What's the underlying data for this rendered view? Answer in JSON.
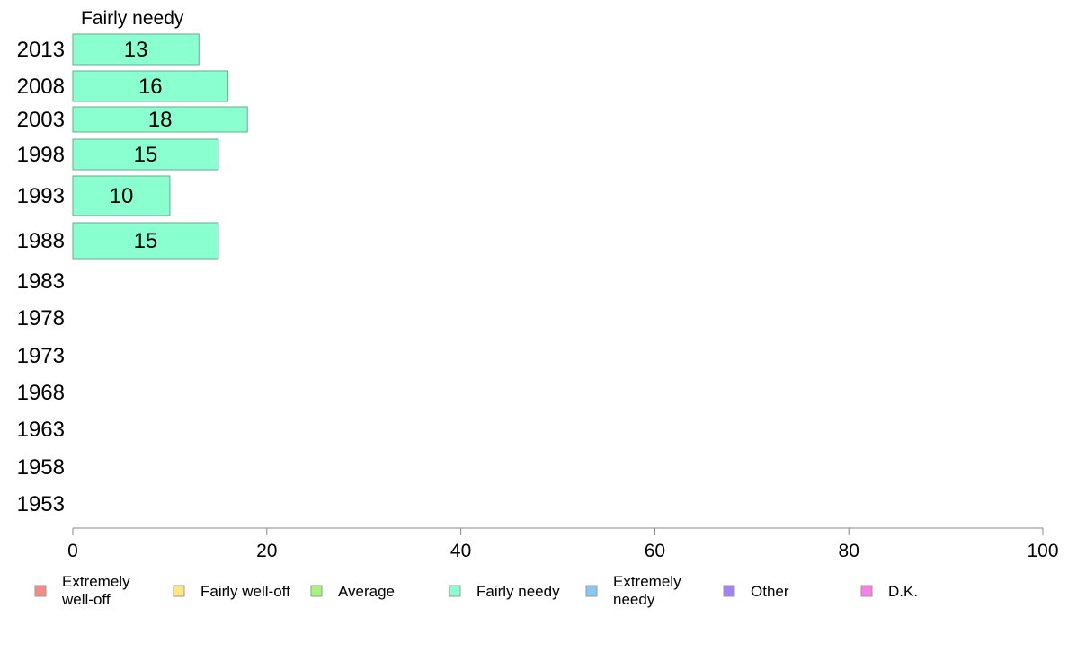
{
  "chart_data": {
    "type": "bar",
    "orientation": "horizontal",
    "panel_title": "Fairly needy",
    "categories": [
      "2013",
      "2008",
      "2003",
      "1998",
      "1993",
      "1988",
      "1983",
      "1978",
      "1973",
      "1968",
      "1963",
      "1958",
      "1953"
    ],
    "series": [
      {
        "name": "Fairly needy",
        "color": "#8affd0",
        "values": [
          13,
          16,
          18,
          15,
          10,
          15,
          null,
          null,
          null,
          null,
          null,
          null,
          null
        ]
      }
    ],
    "xlim": [
      0,
      100
    ],
    "xticks": [
      0,
      20,
      40,
      60,
      80,
      100
    ],
    "grid": false,
    "legend_position": "bottom",
    "legend": [
      {
        "label": "Extremely\nwell-off",
        "color": "#f88a8a"
      },
      {
        "label": "Fairly well-off",
        "color": "#fde77e"
      },
      {
        "label": "Average",
        "color": "#a4f57a"
      },
      {
        "label": "Fairly needy",
        "color": "#8affd0"
      },
      {
        "label": "Extremely\nneedy",
        "color": "#86c8f6"
      },
      {
        "label": "Other",
        "color": "#a184f2"
      },
      {
        "label": "D.K.",
        "color": "#f77ee6"
      }
    ]
  }
}
